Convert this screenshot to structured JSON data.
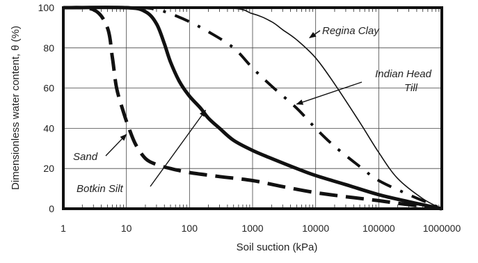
{
  "chart_data": {
    "type": "line",
    "xlabel": "Soil suction (kPa)",
    "ylabel": "Dimensionless water content, θ (%)",
    "x_scale": "log",
    "xlim": [
      1,
      1000000
    ],
    "ylim": [
      0,
      100
    ],
    "grid": true,
    "x_ticks": [
      "1",
      "10",
      "100",
      "1000",
      "10000",
      "100000",
      "1000000"
    ],
    "y_ticks": [
      "0",
      "20",
      "40",
      "60",
      "80",
      "100"
    ],
    "series": [
      {
        "name": "Sand",
        "style": "long-dash",
        "points": [
          [
            1,
            100
          ],
          [
            3,
            99
          ],
          [
            5,
            90
          ],
          [
            6,
            75
          ],
          [
            7,
            60
          ],
          [
            9,
            48
          ],
          [
            11,
            40
          ],
          [
            14,
            32
          ],
          [
            20,
            25
          ],
          [
            30,
            22
          ],
          [
            50,
            20
          ],
          [
            100,
            18
          ],
          [
            300,
            16
          ],
          [
            1000,
            14
          ],
          [
            3000,
            11
          ],
          [
            10000,
            8
          ],
          [
            30000,
            6
          ],
          [
            100000,
            4
          ],
          [
            300000,
            2
          ],
          [
            1000000,
            0
          ]
        ]
      },
      {
        "name": "Botkin Silt",
        "style": "solid-heavy",
        "points": [
          [
            1,
            100
          ],
          [
            10,
            100
          ],
          [
            20,
            98
          ],
          [
            30,
            92
          ],
          [
            40,
            82
          ],
          [
            50,
            73
          ],
          [
            70,
            63
          ],
          [
            100,
            56
          ],
          [
            150,
            50
          ],
          [
            200,
            45
          ],
          [
            300,
            40
          ],
          [
            500,
            34
          ],
          [
            1000,
            29
          ],
          [
            2000,
            25
          ],
          [
            5000,
            20
          ],
          [
            10000,
            16.5
          ],
          [
            30000,
            12
          ],
          [
            100000,
            7
          ],
          [
            300000,
            3.5
          ],
          [
            1000000,
            0
          ]
        ]
      },
      {
        "name": "Indian Head Till",
        "style": "dash-dot",
        "points": [
          [
            1,
            100
          ],
          [
            15,
            100
          ],
          [
            30,
            99
          ],
          [
            50,
            97
          ],
          [
            100,
            93
          ],
          [
            200,
            88
          ],
          [
            500,
            80
          ],
          [
            1000,
            70
          ],
          [
            2000,
            61
          ],
          [
            5000,
            50
          ],
          [
            10000,
            40
          ],
          [
            20000,
            31
          ],
          [
            50000,
            21
          ],
          [
            100000,
            14
          ],
          [
            300000,
            7
          ],
          [
            600000,
            3
          ],
          [
            1000000,
            0
          ]
        ]
      },
      {
        "name": "Regina Clay",
        "style": "solid-thin",
        "points": [
          [
            1,
            100
          ],
          [
            300,
            100
          ],
          [
            1000,
            97
          ],
          [
            2000,
            93
          ],
          [
            3000,
            89
          ],
          [
            5000,
            84
          ],
          [
            10000,
            75
          ],
          [
            20000,
            62
          ],
          [
            50000,
            43
          ],
          [
            100000,
            28
          ],
          [
            200000,
            15
          ],
          [
            500000,
            5
          ],
          [
            1000000,
            0
          ]
        ]
      }
    ],
    "annotations": [
      {
        "text": "Regina Clay",
        "target": [
          8000,
          85
        ]
      },
      {
        "text": "Indian Head\nTill",
        "target": [
          5000,
          52
        ]
      },
      {
        "text": "Sand",
        "target": [
          10,
          37
        ]
      },
      {
        "text": "Botkin Silt",
        "target": [
          180,
          49
        ]
      }
    ]
  }
}
